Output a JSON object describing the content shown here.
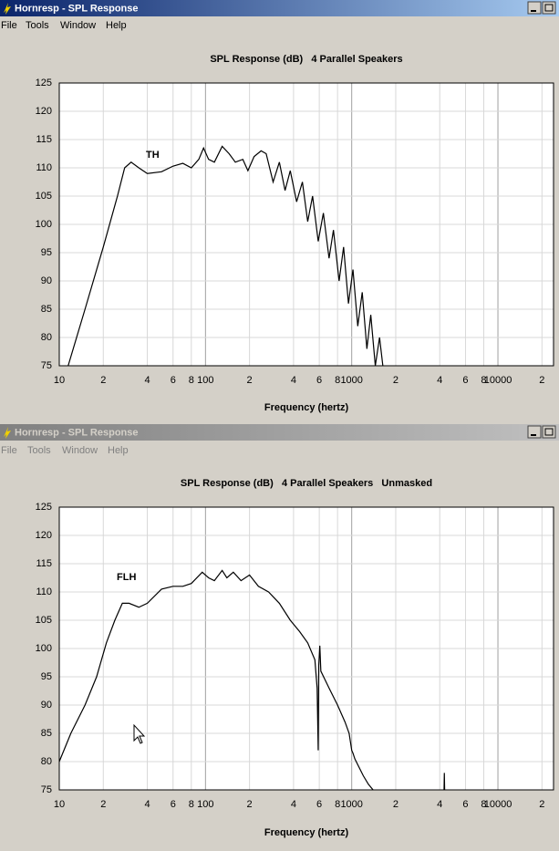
{
  "windows": [
    {
      "title": "Hornresp - SPL Response",
      "menu": [
        "File",
        "Tools",
        "Window",
        "Help"
      ]
    },
    {
      "title": "Hornresp - SPL Response",
      "menu": [
        "File",
        "Tools",
        "Window",
        "Help"
      ]
    }
  ],
  "chart_data": [
    {
      "type": "line",
      "title": "SPL Response (dB)   4 Parallel Speakers",
      "xlabel": "Frequency (hertz)",
      "annotation": "TH",
      "log_x": true,
      "grid": true,
      "xlim": [
        10,
        24000
      ],
      "ylim": [
        75,
        125
      ],
      "xticks": [
        10,
        {
          "value": 20,
          "label": "2"
        },
        {
          "value": 40,
          "label": "4"
        },
        {
          "value": 60,
          "label": "6"
        },
        {
          "value": 80,
          "label": "8"
        },
        100,
        {
          "value": 200,
          "label": "2"
        },
        {
          "value": 400,
          "label": "4"
        },
        {
          "value": 600,
          "label": "6"
        },
        {
          "value": 800,
          "label": "8"
        },
        1000,
        {
          "value": 2000,
          "label": "2"
        },
        {
          "value": 4000,
          "label": "4"
        },
        {
          "value": 6000,
          "label": "6"
        },
        {
          "value": 8000,
          "label": "8"
        },
        10000,
        {
          "value": 20000,
          "label": "2"
        }
      ],
      "yticks": [
        75,
        80,
        85,
        90,
        95,
        100,
        105,
        110,
        115,
        120,
        125
      ],
      "series": [
        {
          "color": "#000000",
          "x": [
            11.5,
            15,
            20,
            25,
            28,
            31,
            35,
            40,
            50,
            60,
            70,
            80,
            90,
            97,
            105,
            115,
            130,
            145,
            160,
            180,
            195,
            215,
            240,
            260,
            290,
            320,
            350,
            380,
            420,
            460,
            500,
            540,
            590,
            640,
            700,
            750,
            820,
            880,
            950,
            1020,
            1100,
            1180,
            1270,
            1350,
            1450,
            1550,
            1650
          ],
          "values": [
            75,
            85,
            96,
            105,
            110,
            111,
            110,
            109,
            109.3,
            110.3,
            110.8,
            110,
            111.5,
            113.5,
            111.5,
            111,
            113.8,
            112.5,
            111,
            111.5,
            109.5,
            112,
            113,
            112.5,
            107.5,
            111,
            106,
            109.5,
            104,
            107.5,
            100.5,
            105,
            97,
            102,
            94,
            99,
            90,
            96,
            86,
            92,
            82,
            88,
            78,
            84,
            75,
            80,
            74
          ]
        }
      ]
    },
    {
      "type": "line",
      "title": "SPL Response (dB)   4 Parallel Speakers   Unmasked",
      "xlabel": "Frequency (hertz)",
      "annotation": "FLH",
      "log_x": true,
      "grid": true,
      "xlim": [
        10,
        24000
      ],
      "ylim": [
        75,
        125
      ],
      "xticks": [
        10,
        {
          "value": 20,
          "label": "2"
        },
        {
          "value": 40,
          "label": "4"
        },
        {
          "value": 60,
          "label": "6"
        },
        {
          "value": 80,
          "label": "8"
        },
        100,
        {
          "value": 200,
          "label": "2"
        },
        {
          "value": 400,
          "label": "4"
        },
        {
          "value": 600,
          "label": "6"
        },
        {
          "value": 800,
          "label": "8"
        },
        1000,
        {
          "value": 2000,
          "label": "2"
        },
        {
          "value": 4000,
          "label": "4"
        },
        {
          "value": 6000,
          "label": "6"
        },
        {
          "value": 8000,
          "label": "8"
        },
        10000,
        {
          "value": 20000,
          "label": "2"
        }
      ],
      "yticks": [
        75,
        80,
        85,
        90,
        95,
        100,
        105,
        110,
        115,
        120,
        125
      ],
      "series": [
        {
          "color": "#000000",
          "x": [
            10,
            12,
            15,
            18,
            21,
            24,
            27,
            30,
            35,
            40,
            50,
            60,
            70,
            80,
            95,
            105,
            115,
            130,
            140,
            155,
            175,
            200,
            230,
            270,
            320,
            380,
            440,
            500,
            560,
            580,
            590,
            595,
            605,
            615,
            700,
            800,
            900,
            960,
            1000,
            1020,
            1050,
            1200,
            1300,
            1400,
            2000,
            4280,
            4300,
            4320
          ],
          "values": [
            80,
            85,
            90,
            95,
            101,
            105,
            108,
            108,
            107.3,
            108,
            110.5,
            111,
            111,
            111.5,
            113.5,
            112.5,
            112,
            113.8,
            112.5,
            113.5,
            112,
            113,
            111,
            110,
            108,
            105,
            103,
            101,
            98,
            93,
            82,
            97,
            100.5,
            96,
            93,
            90,
            87,
            85,
            82,
            81.5,
            80.5,
            77.5,
            76,
            75,
            null,
            75,
            78,
            75
          ]
        }
      ]
    }
  ]
}
